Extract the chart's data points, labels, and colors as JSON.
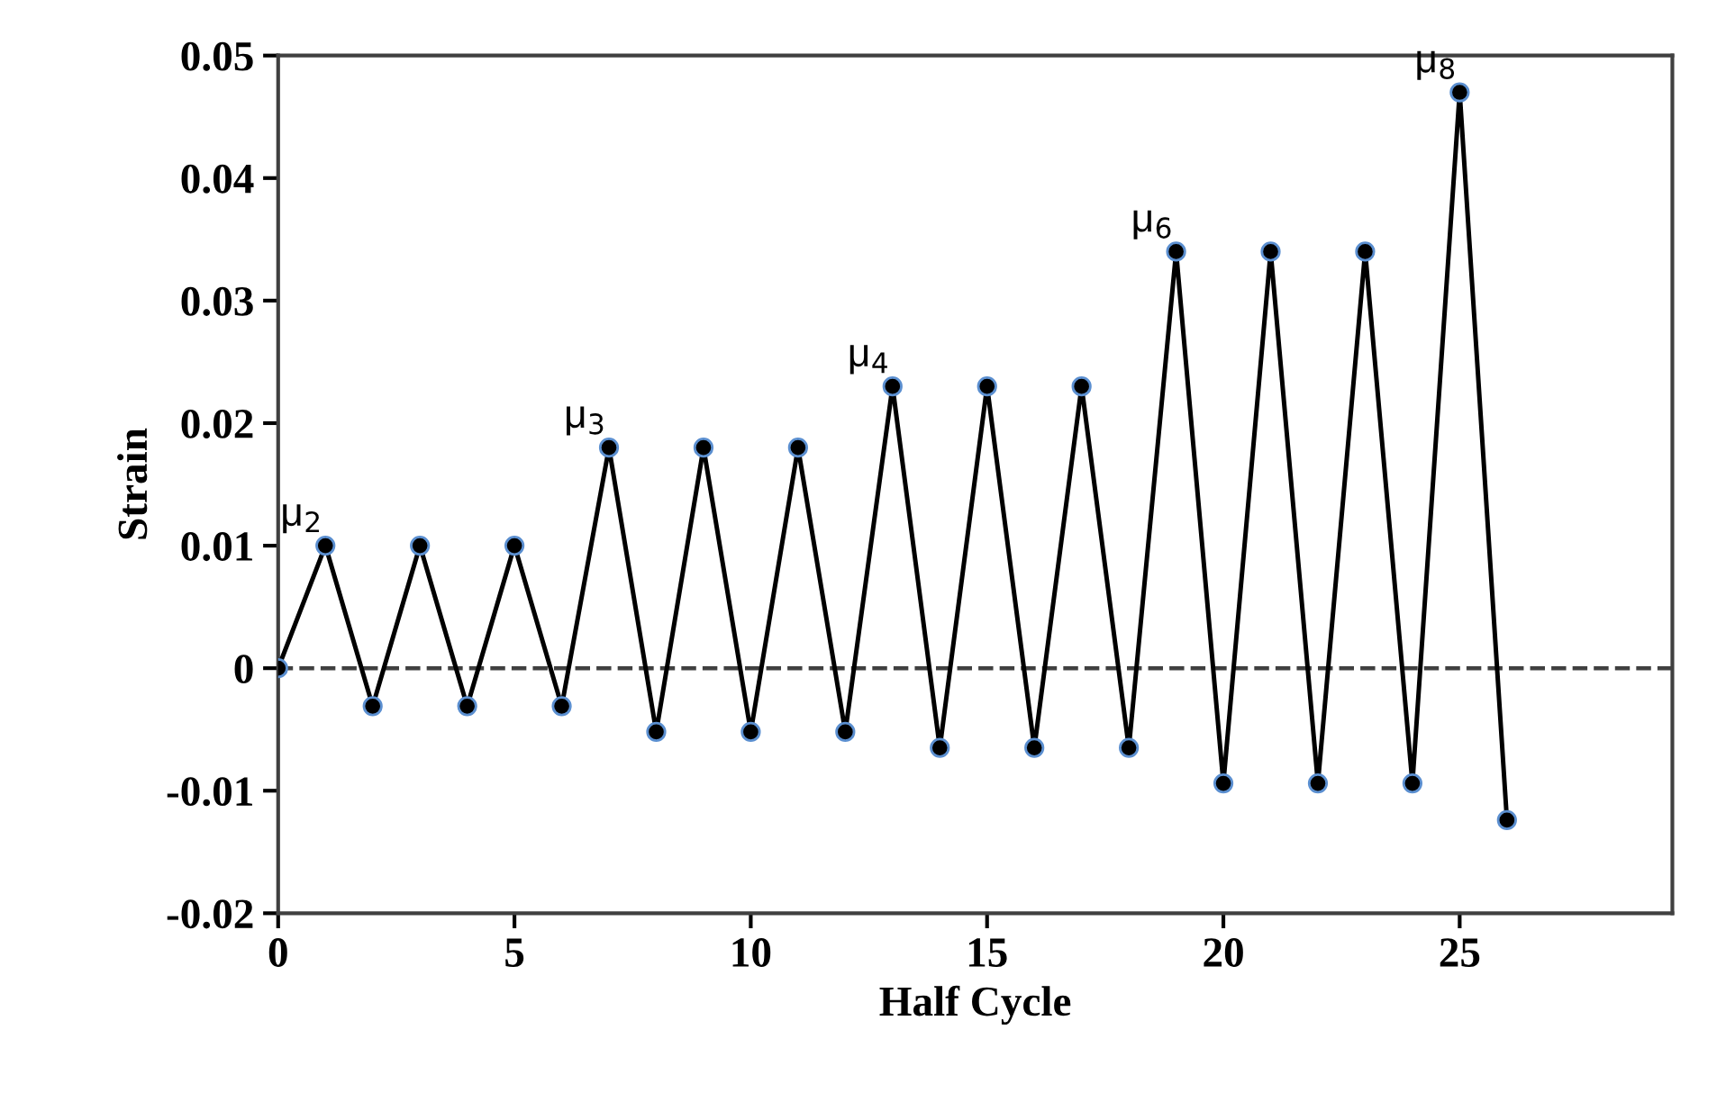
{
  "chart_data": {
    "type": "line",
    "xlabel": "Half Cycle",
    "ylabel": "Strain",
    "x": [
      0,
      1,
      2,
      3,
      4,
      5,
      6,
      7,
      8,
      9,
      10,
      11,
      12,
      13,
      14,
      15,
      16,
      17,
      18,
      19,
      20,
      21,
      22,
      23,
      24,
      25,
      26
    ],
    "series": [
      {
        "color": "#000000",
        "values": [
          0,
          0.01,
          -0.0031,
          0.01,
          -0.0031,
          0.01,
          -0.0031,
          0.018,
          -0.0052,
          0.018,
          -0.0052,
          0.018,
          -0.0052,
          0.023,
          -0.0065,
          0.023,
          -0.0065,
          0.023,
          -0.0065,
          0.034,
          -0.0094,
          0.034,
          -0.0094,
          0.034,
          -0.0094,
          0.047,
          -0.0124
        ]
      }
    ],
    "marker": "circle",
    "line_style": "solid",
    "grid": false,
    "legend": false,
    "xlim": [
      0,
      29.5
    ],
    "xticks": [
      0,
      5,
      10,
      15,
      20,
      25
    ],
    "ylim": [
      -0.02,
      0.05
    ],
    "yticks": [
      {
        "value": -0.02,
        "label": "-0.02"
      },
      {
        "value": -0.01,
        "label": "-0.01"
      },
      0,
      0.01,
      0.02,
      0.03,
      0.04,
      0.05
    ],
    "ref_lines": [
      {
        "axis": "y",
        "value": 0,
        "line_style": "dashed",
        "color": "#404040"
      }
    ],
    "annotations": [
      {
        "text": "μ$_{2}$",
        "x": 1,
        "y": 0.01
      },
      {
        "text": "μ$_{3}$",
        "x": 7,
        "y": 0.018
      },
      {
        "text": "μ$_{4}$",
        "x": 13,
        "y": 0.023
      },
      {
        "text": "μ$_{6}$",
        "x": 19,
        "y": 0.034
      },
      {
        "text": "μ$_{8}$",
        "x": 25,
        "y": 0.047
      }
    ]
  }
}
